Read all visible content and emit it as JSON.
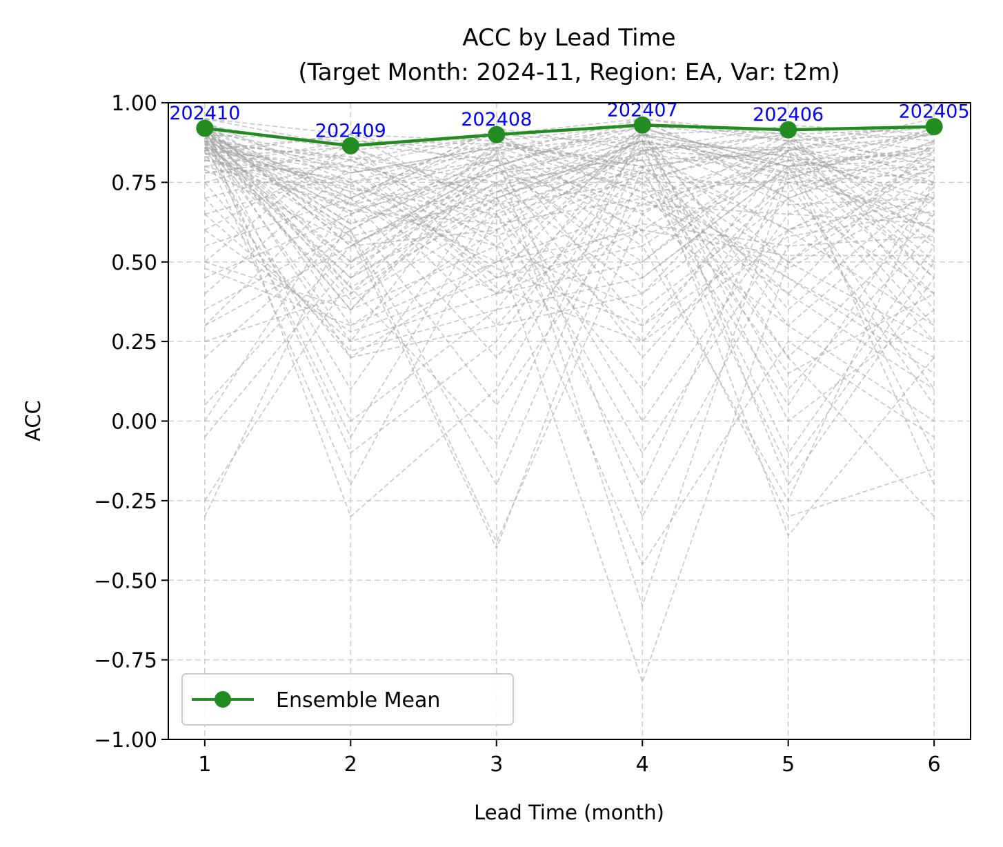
{
  "chart_data": {
    "type": "line",
    "title": "ACC by Lead Time",
    "subtitle": "(Target Month: 2024-11, Region: EA, Var: t2m)",
    "xlabel": "Lead Time (month)",
    "ylabel": "ACC",
    "x": [
      1,
      2,
      3,
      4,
      5,
      6
    ],
    "x_tick_labels": [
      "1",
      "2",
      "3",
      "4",
      "5",
      "6"
    ],
    "xlim": [
      0.75,
      6.25
    ],
    "ylim": [
      -1.0,
      1.0
    ],
    "y_ticks": [
      -1.0,
      -0.75,
      -0.5,
      -0.25,
      0.0,
      0.25,
      0.5,
      0.75,
      1.0
    ],
    "y_tick_labels": [
      "−1.00",
      "−0.75",
      "−0.50",
      "−0.25",
      "0.00",
      "0.25",
      "0.50",
      "0.75",
      "1.00"
    ],
    "grid": true,
    "legend_position": "lower-left",
    "series": [
      {
        "name": "Ensemble Mean",
        "values": [
          0.92,
          0.865,
          0.9,
          0.93,
          0.915,
          0.925
        ],
        "color": "#228b22",
        "marker": "circle",
        "point_labels": [
          "202410",
          "202409",
          "202408",
          "202407",
          "202406",
          "202405"
        ],
        "point_label_color": "#0000ff"
      }
    ],
    "members": {
      "color": "#a0a0a0",
      "style": "dashed",
      "lines": [
        [
          0.95,
          0.9,
          0.88,
          0.93,
          0.9,
          0.92
        ],
        [
          0.93,
          0.85,
          0.9,
          0.95,
          0.88,
          0.9
        ],
        [
          0.9,
          0.88,
          0.85,
          0.9,
          0.92,
          0.88
        ],
        [
          0.88,
          0.82,
          0.9,
          0.87,
          0.85,
          0.93
        ],
        [
          0.92,
          0.78,
          0.86,
          0.92,
          0.8,
          0.85
        ],
        [
          0.85,
          0.9,
          0.8,
          0.95,
          0.9,
          0.8
        ],
        [
          0.9,
          0.7,
          0.92,
          0.85,
          0.93,
          0.9
        ],
        [
          0.8,
          0.88,
          0.87,
          0.8,
          0.85,
          0.95
        ],
        [
          0.94,
          0.75,
          0.82,
          0.9,
          0.78,
          0.87
        ],
        [
          0.87,
          0.83,
          0.75,
          0.93,
          0.88,
          0.82
        ],
        [
          0.91,
          0.65,
          0.88,
          0.78,
          0.92,
          0.75
        ],
        [
          0.83,
          0.86,
          0.7,
          0.88,
          0.8,
          0.92
        ],
        [
          0.89,
          0.6,
          0.84,
          0.95,
          0.7,
          0.88
        ],
        [
          0.78,
          0.8,
          0.9,
          0.7,
          0.86,
          0.78
        ],
        [
          0.93,
          0.55,
          0.78,
          0.9,
          0.83,
          0.7
        ],
        [
          0.86,
          0.73,
          0.65,
          0.85,
          0.9,
          0.85
        ],
        [
          0.75,
          0.87,
          0.82,
          0.6,
          0.88,
          0.93
        ],
        [
          0.9,
          0.5,
          0.86,
          0.82,
          0.6,
          0.8
        ],
        [
          0.7,
          0.82,
          0.6,
          0.92,
          0.8,
          0.6
        ],
        [
          0.88,
          0.45,
          0.88,
          0.75,
          0.9,
          0.5
        ],
        [
          0.65,
          0.78,
          0.84,
          0.55,
          0.85,
          0.9
        ],
        [
          0.92,
          0.4,
          0.7,
          0.88,
          0.5,
          0.85
        ],
        [
          0.6,
          0.85,
          0.55,
          0.9,
          0.75,
          0.65
        ],
        [
          0.9,
          0.35,
          0.8,
          0.5,
          0.88,
          0.45
        ],
        [
          0.55,
          0.7,
          0.88,
          0.8,
          0.4,
          0.88
        ],
        [
          0.94,
          0.3,
          0.6,
          0.85,
          0.82,
          0.55
        ],
        [
          0.5,
          0.88,
          0.45,
          0.93,
          0.7,
          0.4
        ],
        [
          0.88,
          0.25,
          0.85,
          0.65,
          0.9,
          0.35
        ],
        [
          0.45,
          0.65,
          0.82,
          0.45,
          0.8,
          0.82
        ],
        [
          0.91,
          0.2,
          0.5,
          0.9,
          0.35,
          0.75
        ],
        [
          0.4,
          0.8,
          0.4,
          0.85,
          0.6,
          0.3
        ],
        [
          0.86,
          0.1,
          0.75,
          0.4,
          0.88,
          0.6
        ],
        [
          0.35,
          0.6,
          0.86,
          0.3,
          0.75,
          0.78
        ],
        [
          0.92,
          0.0,
          0.35,
          0.92,
          0.3,
          0.7
        ],
        [
          0.3,
          0.75,
          0.3,
          0.8,
          0.5,
          0.25
        ],
        [
          0.87,
          -0.05,
          0.7,
          0.25,
          0.85,
          0.45
        ],
        [
          0.05,
          0.55,
          0.8,
          0.2,
          0.7,
          0.86
        ],
        [
          0.9,
          -0.1,
          0.25,
          0.88,
          0.2,
          0.65
        ],
        [
          0.0,
          0.7,
          0.2,
          0.75,
          0.45,
          0.2
        ],
        [
          0.85,
          -0.2,
          0.65,
          0.1,
          0.82,
          0.4
        ],
        [
          -0.05,
          0.5,
          0.75,
          0.0,
          0.65,
          0.84
        ],
        [
          0.93,
          -0.3,
          0.1,
          0.9,
          0.1,
          0.6
        ],
        [
          -0.3,
          0.65,
          0.05,
          0.7,
          0.4,
          0.1
        ],
        [
          0.88,
          0.42,
          -0.07,
          0.92,
          0.0,
          0.35
        ],
        [
          -0.25,
          0.45,
          0.7,
          -0.1,
          0.6,
          0.82
        ],
        [
          0.9,
          0.6,
          -0.2,
          0.86,
          -0.1,
          0.55
        ],
        [
          0.2,
          0.6,
          -0.38,
          0.65,
          0.3,
          0.0
        ],
        [
          0.86,
          0.38,
          0.65,
          -0.2,
          0.8,
          0.3
        ],
        [
          0.25,
          0.4,
          0.86,
          -0.3,
          0.55,
          0.8
        ],
        [
          0.92,
          0.58,
          -0.4,
          0.8,
          -0.15,
          0.5
        ],
        [
          0.3,
          0.55,
          0.6,
          -0.45,
          0.25,
          -0.05
        ],
        [
          0.89,
          0.35,
          0.84,
          -0.58,
          0.78,
          0.25
        ],
        [
          0.5,
          0.35,
          0.55,
          -0.82,
          0.5,
          0.78
        ],
        [
          0.93,
          0.55,
          0.8,
          0.93,
          -0.2,
          0.45
        ],
        [
          0.48,
          0.3,
          0.5,
          0.6,
          -0.3,
          -0.15
        ],
        [
          0.87,
          0.5,
          0.78,
          0.88,
          -0.36,
          0.2
        ],
        [
          0.6,
          0.28,
          0.45,
          0.55,
          -0.25,
          0.76
        ],
        [
          0.9,
          0.48,
          0.75,
          0.82,
          0.2,
          -0.3
        ],
        [
          0.65,
          0.25,
          0.4,
          0.5,
          0.85,
          -0.2
        ],
        [
          0.86,
          0.45,
          0.72,
          0.78,
          0.15,
          0.4
        ],
        [
          0.7,
          0.22,
          0.35,
          0.45,
          0.8,
          -0.1
        ],
        [
          0.92,
          0.42,
          0.68,
          0.75,
          0.05,
          0.74
        ],
        [
          0.75,
          0.2,
          0.3,
          0.4,
          0.75,
          0.1
        ],
        [
          0.88,
          0.66,
          0.62,
          0.7,
          0.45,
          0.15
        ],
        [
          0.8,
          0.68,
          0.55,
          0.35,
          0.7,
          0.05
        ],
        [
          0.9,
          0.72,
          0.5,
          0.68,
          0.65,
          0.62
        ],
        [
          0.82,
          0.76,
          0.48,
          0.3,
          0.6,
          0.7
        ],
        [
          0.85,
          0.8,
          0.45,
          0.62,
          0.55,
          0.58
        ],
        [
          0.78,
          0.84,
          0.42,
          0.25,
          0.58,
          0.66
        ],
        [
          0.92,
          0.7,
          0.4,
          0.6,
          0.52,
          0.52
        ],
        [
          0.84,
          0.75,
          0.88,
          0.72,
          0.48,
          0.72
        ],
        [
          0.9,
          0.68,
          0.91,
          0.58,
          0.78,
          0.6
        ],
        [
          0.87,
          0.72,
          0.82,
          0.68,
          0.82,
          0.75
        ],
        [
          0.83,
          0.66,
          0.78,
          0.82,
          0.84,
          0.68
        ],
        [
          0.91,
          0.62,
          0.74,
          0.84,
          0.78,
          0.8
        ],
        [
          0.86,
          0.58,
          0.7,
          0.86,
          0.86,
          0.74
        ],
        [
          0.95,
          0.86,
          0.68,
          0.88,
          0.8,
          0.86
        ],
        [
          0.89,
          0.8,
          0.72,
          0.9,
          0.83,
          0.9
        ],
        [
          0.82,
          0.7,
          0.92,
          0.76,
          0.87,
          0.64
        ],
        [
          0.9,
          0.62,
          0.8,
          0.94,
          0.76,
          0.91
        ],
        [
          0.84,
          0.9,
          0.66,
          0.84,
          0.9,
          0.56
        ],
        [
          0.88,
          0.74,
          0.58,
          0.78,
          0.72,
          0.88
        ],
        [
          0.93,
          0.68,
          0.78,
          0.66,
          0.82,
          0.84
        ],
        [
          0.79,
          0.56,
          0.72,
          0.88,
          0.68,
          0.7
        ],
        [
          0.91,
          0.82,
          0.64,
          0.8,
          0.86,
          0.48
        ],
        [
          0.86,
          0.78,
          0.86,
          0.72,
          0.76,
          0.92
        ]
      ]
    }
  }
}
